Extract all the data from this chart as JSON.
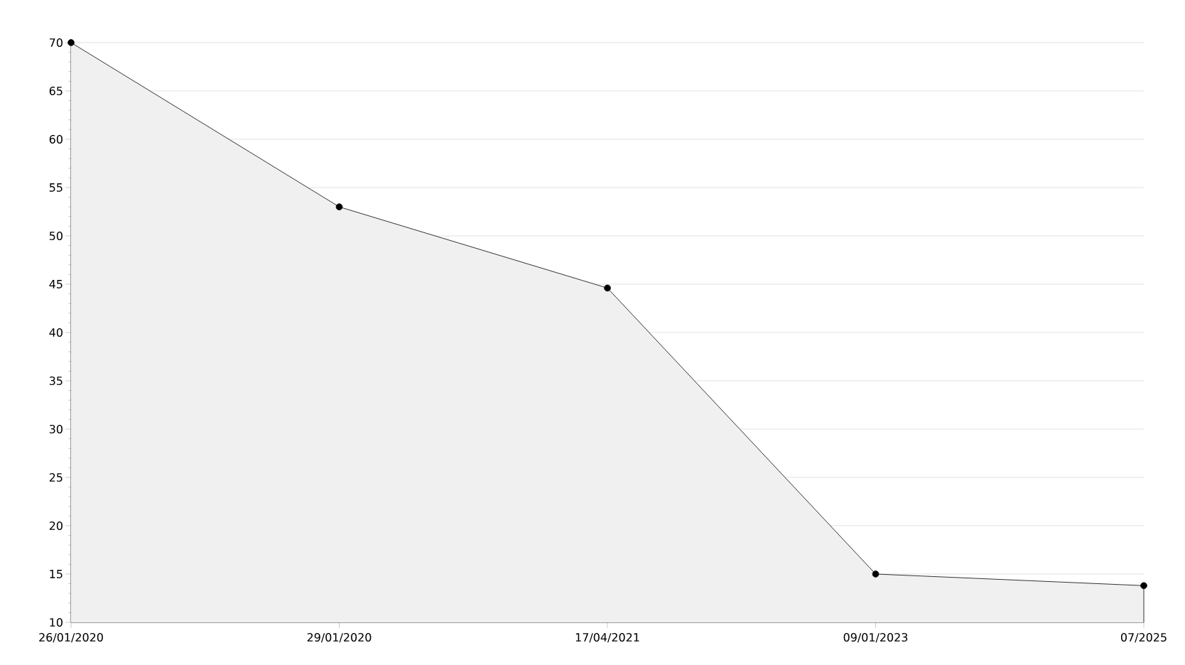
{
  "chart_data": {
    "type": "area",
    "categories": [
      "26/01/2020",
      "29/01/2020",
      "17/04/2021",
      "09/01/2023",
      "07/2025"
    ],
    "series": [
      {
        "color": "#000000",
        "values": [
          70,
          53,
          44.6,
          15,
          13.8
        ]
      }
    ],
    "ylim": [
      10,
      70
    ],
    "yticks": [
      10,
      15,
      20,
      25,
      30,
      35,
      40,
      45,
      50,
      55,
      60,
      65,
      70
    ],
    "grid": "y",
    "marker": "circle",
    "line_style": "solid"
  }
}
